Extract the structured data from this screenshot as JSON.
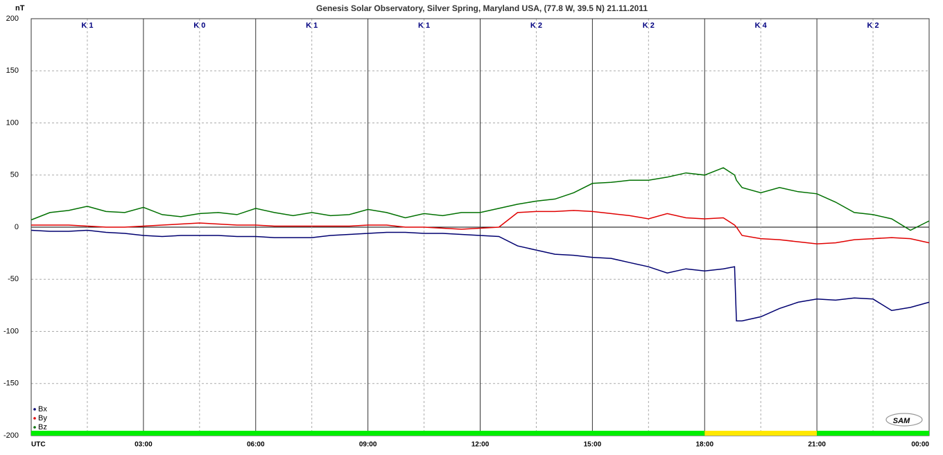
{
  "chart_data": {
    "type": "line",
    "title": "Genesis Solar Observatory, Silver Spring, Maryland USA, (77.8 W, 39.5 N)  21.11.2011",
    "ylabel": "nT",
    "logo": "SAM",
    "k_labels": [
      "K 1",
      "K 0",
      "K 1",
      "K 1",
      "K 2",
      "K 2",
      "K 4",
      "K 2"
    ],
    "activity_bar": [
      {
        "start": 0,
        "end": 18,
        "color": "#00ee00"
      },
      {
        "start": 18,
        "end": 21,
        "color": "#ffe800"
      },
      {
        "start": 21,
        "end": 24,
        "color": "#00ee00"
      }
    ],
    "xlim": [
      0,
      24
    ],
    "xticks": [
      {
        "value": 0,
        "label": "UTC"
      },
      {
        "value": 3,
        "label": "03:00"
      },
      {
        "value": 6,
        "label": "06:00"
      },
      {
        "value": 9,
        "label": "09:00"
      },
      {
        "value": 12,
        "label": "12:00"
      },
      {
        "value": 15,
        "label": "15:00"
      },
      {
        "value": 18,
        "label": "18:00"
      },
      {
        "value": 21,
        "label": "21:00"
      },
      {
        "value": 24,
        "label": "00:00"
      }
    ],
    "xminorticks": [
      1.5,
      4.5,
      7.5,
      10.5,
      13.5,
      16.5,
      19.5,
      22.5
    ],
    "ylim": [
      -200,
      200
    ],
    "yticks": [
      -200,
      -150,
      -100,
      -50,
      0,
      50,
      100,
      150,
      200
    ],
    "grid": true,
    "legend": "lower left",
    "x": [
      0,
      0.5,
      1,
      1.5,
      2,
      2.5,
      3,
      3.5,
      4,
      4.5,
      5,
      5.5,
      6,
      6.5,
      7,
      7.5,
      8,
      8.5,
      9,
      9.5,
      10,
      10.5,
      11,
      11.5,
      12,
      12.5,
      13,
      13.5,
      14,
      14.5,
      15,
      15.5,
      16,
      16.5,
      17,
      17.5,
      18,
      18.5,
      18.8,
      18.85,
      19,
      19.5,
      20,
      20.5,
      21,
      21.5,
      22,
      22.5,
      23,
      23.5,
      24
    ],
    "series": [
      {
        "name": "Bx",
        "color": "#000070",
        "values": [
          -3,
          -4,
          -4,
          -3,
          -5,
          -6,
          -8,
          -9,
          -8,
          -8,
          -8,
          -9,
          -9,
          -10,
          -10,
          -10,
          -8,
          -7,
          -6,
          -5,
          -5,
          -6,
          -6,
          -7,
          -8,
          -9,
          -18,
          -22,
          -26,
          -27,
          -29,
          -30,
          -34,
          -38,
          -44,
          -40,
          -42,
          -40,
          -38,
          -90,
          -90,
          -86,
          -78,
          -72,
          -69,
          -70,
          -68,
          -69,
          -80,
          -77,
          -72
        ]
      },
      {
        "name": "By",
        "color": "#e00000",
        "values": [
          2,
          2,
          2,
          1,
          0,
          0,
          1,
          2,
          3,
          4,
          3,
          2,
          2,
          1,
          1,
          1,
          1,
          1,
          2,
          2,
          0,
          0,
          -1,
          -2,
          -1,
          0,
          14,
          15,
          15,
          16,
          15,
          13,
          11,
          8,
          13,
          9,
          8,
          9,
          2,
          0,
          -8,
          -11,
          -12,
          -14,
          -16,
          -15,
          -12,
          -11,
          -10,
          -11,
          -15
        ]
      },
      {
        "name": "Bz",
        "color": "#007000",
        "values": [
          7,
          14,
          16,
          20,
          15,
          14,
          19,
          12,
          10,
          13,
          14,
          12,
          18,
          14,
          11,
          14,
          11,
          12,
          17,
          14,
          9,
          13,
          11,
          14,
          14,
          18,
          22,
          25,
          27,
          33,
          42,
          43,
          45,
          45,
          48,
          52,
          50,
          57,
          50,
          45,
          38,
          33,
          38,
          34,
          32,
          24,
          14,
          12,
          8,
          -3,
          6
        ]
      }
    ]
  }
}
